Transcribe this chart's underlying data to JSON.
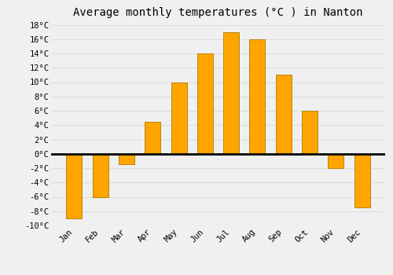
{
  "title": "Average monthly temperatures (°C ) in Nanton",
  "months": [
    "Jan",
    "Feb",
    "Mar",
    "Apr",
    "May",
    "Jun",
    "Jul",
    "Aug",
    "Sep",
    "Oct",
    "Nov",
    "Dec"
  ],
  "values": [
    -9,
    -6,
    -1.5,
    4.5,
    10,
    14,
    17,
    16,
    11,
    6,
    -2,
    -7.5
  ],
  "bar_color": "#FFA500",
  "bar_edge_color": "#B8860B",
  "ylim": [
    -10,
    18
  ],
  "yticks": [
    -10,
    -8,
    -6,
    -4,
    -2,
    0,
    2,
    4,
    6,
    8,
    10,
    12,
    14,
    16,
    18
  ],
  "ytick_labels": [
    "-10°C",
    "-8°C",
    "-6°C",
    "-4°C",
    "-2°C",
    "0°C",
    "2°C",
    "4°C",
    "6°C",
    "8°C",
    "10°C",
    "12°C",
    "14°C",
    "16°C",
    "18°C"
  ],
  "grid_color": "#dddddd",
  "background_color": "#f0f0f0",
  "zero_line_color": "#000000",
  "title_fontsize": 10,
  "tick_fontsize": 7.5,
  "bar_width": 0.6
}
